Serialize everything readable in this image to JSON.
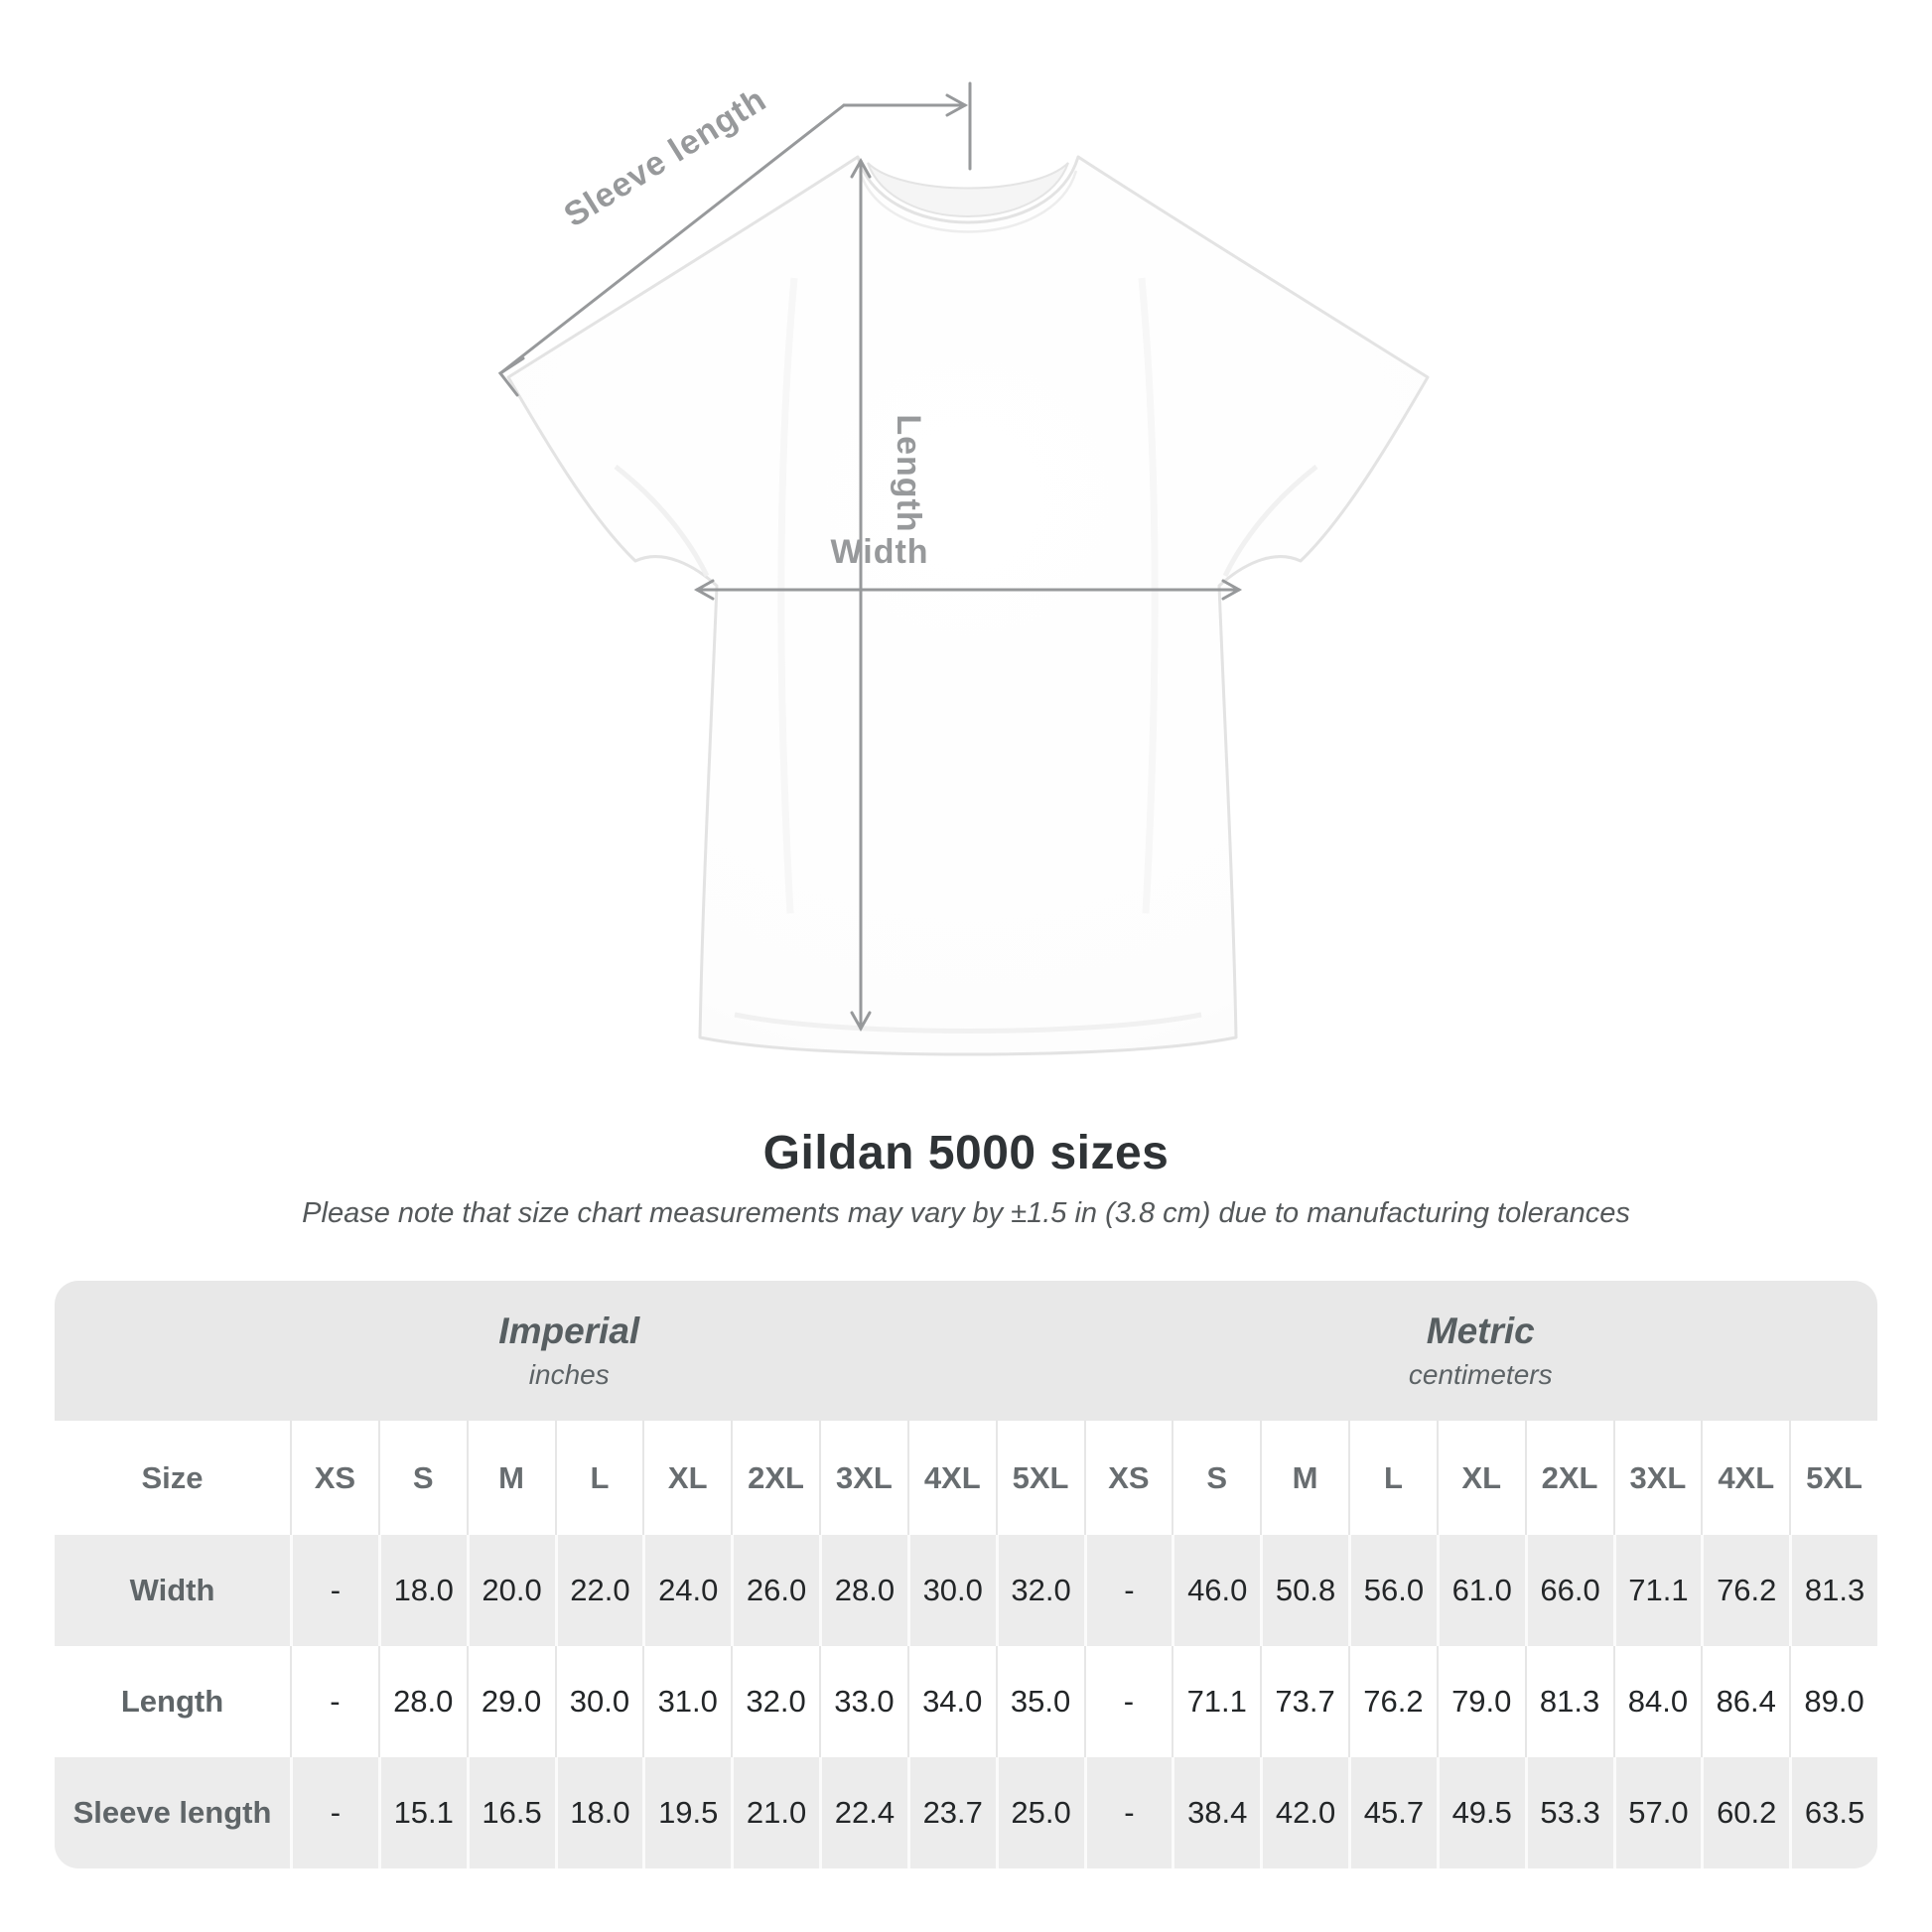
{
  "diagram": {
    "sleeve_length_label": "Sleeve length",
    "length_label": "Length",
    "width_label": "Width"
  },
  "heading": {
    "title": "Gildan 5000 sizes",
    "subtitle": "Please note that size chart measurements may vary by ±1.5 in (3.8 cm) due to manufacturing tolerances"
  },
  "table": {
    "size_header": "Size",
    "unit_groups": [
      {
        "label": "Imperial",
        "unit": "inches"
      },
      {
        "label": "Metric",
        "unit": "centimeters"
      }
    ],
    "sizes": [
      "XS",
      "S",
      "M",
      "L",
      "XL",
      "2XL",
      "3XL",
      "4XL",
      "5XL"
    ],
    "rows": [
      {
        "label": "Width",
        "imperial": [
          "-",
          "18.0",
          "20.0",
          "22.0",
          "24.0",
          "26.0",
          "28.0",
          "30.0",
          "32.0"
        ],
        "metric": [
          "-",
          "46.0",
          "50.8",
          "56.0",
          "61.0",
          "66.0",
          "71.1",
          "76.2",
          "81.3"
        ]
      },
      {
        "label": "Length",
        "imperial": [
          "-",
          "28.0",
          "29.0",
          "30.0",
          "31.0",
          "32.0",
          "33.0",
          "34.0",
          "35.0"
        ],
        "metric": [
          "-",
          "71.1",
          "73.7",
          "76.2",
          "79.0",
          "81.3",
          "84.0",
          "86.4",
          "89.0"
        ]
      },
      {
        "label": "Sleeve length",
        "imperial": [
          "-",
          "15.1",
          "16.5",
          "18.0",
          "19.5",
          "21.0",
          "22.4",
          "23.7",
          "25.0"
        ],
        "metric": [
          "-",
          "38.4",
          "42.0",
          "45.7",
          "49.5",
          "53.3",
          "57.0",
          "60.2",
          "63.5"
        ]
      }
    ]
  },
  "colors": {
    "arrow": "#97999b",
    "band_bg": "#e8e8e8",
    "row_gray": "#ececec",
    "header_text": "#686d70",
    "value_text": "#232628"
  }
}
